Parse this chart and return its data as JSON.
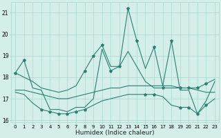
{
  "x": [
    0,
    1,
    2,
    3,
    4,
    5,
    6,
    7,
    8,
    9,
    10,
    11,
    12,
    13,
    14,
    15,
    16,
    17,
    18,
    19,
    20,
    21,
    22,
    23
  ],
  "line_main": [
    18.2,
    18.8,
    17.5,
    17.4,
    16.5,
    16.5,
    16.4,
    16.6,
    16.6,
    17.0,
    19.3,
    18.3,
    18.5,
    21.2,
    19.7,
    18.4,
    19.4,
    17.6,
    19.7,
    17.4,
    17.4,
    16.3,
    16.9,
    17.8
  ],
  "line_upper": [
    18.2,
    18.0,
    17.8,
    17.5,
    17.4,
    17.3,
    17.4,
    17.6,
    18.3,
    19.0,
    19.5,
    18.5,
    18.5,
    19.2,
    18.5,
    17.8,
    17.5,
    17.5,
    17.5,
    17.5,
    17.5,
    17.5,
    17.7,
    17.9
  ],
  "line_mid": [
    17.4,
    17.4,
    17.3,
    17.2,
    17.1,
    17.0,
    17.0,
    17.1,
    17.2,
    17.3,
    17.4,
    17.5,
    17.5,
    17.6,
    17.6,
    17.6,
    17.6,
    17.6,
    17.6,
    17.5,
    17.5,
    17.4,
    17.3,
    17.3
  ],
  "line_lower": [
    17.3,
    17.2,
    16.8,
    16.5,
    16.4,
    16.3,
    16.3,
    16.4,
    16.5,
    16.7,
    16.9,
    17.0,
    17.1,
    17.2,
    17.2,
    17.2,
    17.2,
    17.1,
    16.7,
    16.6,
    16.6,
    16.3,
    16.7,
    17.0
  ],
  "markers_main": [
    0,
    1,
    11,
    12,
    13,
    14,
    16,
    18
  ],
  "markers_upper": [
    8,
    9,
    10,
    17,
    19,
    20,
    21,
    22
  ],
  "markers_lower": [
    3,
    4,
    5,
    6,
    7,
    8,
    15,
    16,
    19,
    20,
    21,
    22
  ],
  "ylim": [
    15.9,
    21.5
  ],
  "yticks": [
    16,
    17,
    18,
    19,
    20,
    21
  ],
  "xlim": [
    -0.5,
    23.5
  ],
  "color": "#2a7f72",
  "bg_color": "#d4eeea",
  "grid_color": "#a8d8d0",
  "xlabel": "Humidex (Indice chaleur)"
}
